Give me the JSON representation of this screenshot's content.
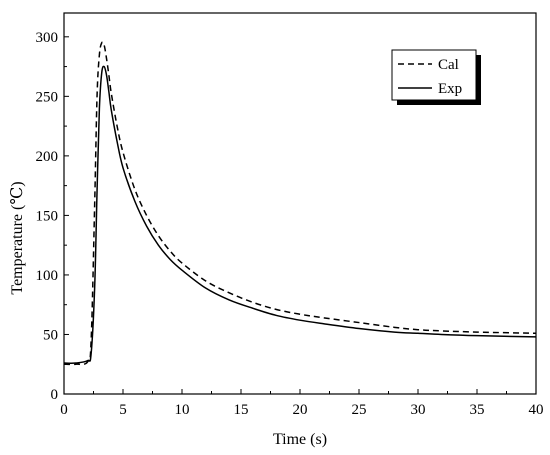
{
  "chart_data": {
    "type": "line",
    "xlabel": "Time (s)",
    "ylabel": "Temperature (℃)",
    "xlim": [
      0,
      40
    ],
    "ylim": [
      0,
      320
    ],
    "xticks": [
      0,
      5,
      10,
      15,
      20,
      25,
      30,
      35,
      40
    ],
    "yticks": [
      0,
      50,
      100,
      150,
      200,
      250,
      300
    ],
    "x_tick_labels": [
      "0",
      "5",
      "10",
      "15",
      "20",
      "25",
      "30",
      "35",
      "40"
    ],
    "y_tick_labels": [
      "0",
      "50",
      "100",
      "150",
      "200",
      "250",
      "300"
    ],
    "grid": false,
    "legend_position": "top-right",
    "series": [
      {
        "name": "Cal",
        "style": "dashed",
        "color": "#000000",
        "x": [
          0,
          1,
          2,
          2.3,
          2.6,
          2.8,
          3.0,
          3.2,
          3.4,
          3.6,
          3.8,
          4.0,
          4.5,
          5,
          6,
          7,
          8,
          9,
          10,
          12,
          14,
          16,
          18,
          20,
          22,
          25,
          28,
          30,
          32,
          35,
          40
        ],
        "values": [
          25,
          25,
          27,
          45,
          160,
          250,
          285,
          295,
          293,
          282,
          268,
          253,
          225,
          203,
          172,
          150,
          133,
          120,
          110,
          95,
          85,
          77,
          71,
          67,
          64,
          60,
          56,
          54,
          53,
          52,
          51
        ]
      },
      {
        "name": "Exp",
        "style": "solid",
        "color": "#000000",
        "x": [
          0,
          1,
          2,
          2.3,
          2.6,
          2.8,
          3.0,
          3.2,
          3.4,
          3.6,
          3.8,
          4.0,
          4.5,
          5,
          6,
          7,
          8,
          9,
          10,
          12,
          14,
          16,
          18,
          20,
          22,
          25,
          28,
          30,
          32,
          35,
          40
        ],
        "values": [
          26,
          26,
          28,
          34,
          90,
          170,
          240,
          270,
          275,
          268,
          254,
          239,
          212,
          190,
          162,
          141,
          125,
          113,
          104,
          89,
          79,
          72,
          66,
          62,
          59,
          55,
          52,
          51,
          50,
          49,
          48
        ]
      }
    ]
  }
}
